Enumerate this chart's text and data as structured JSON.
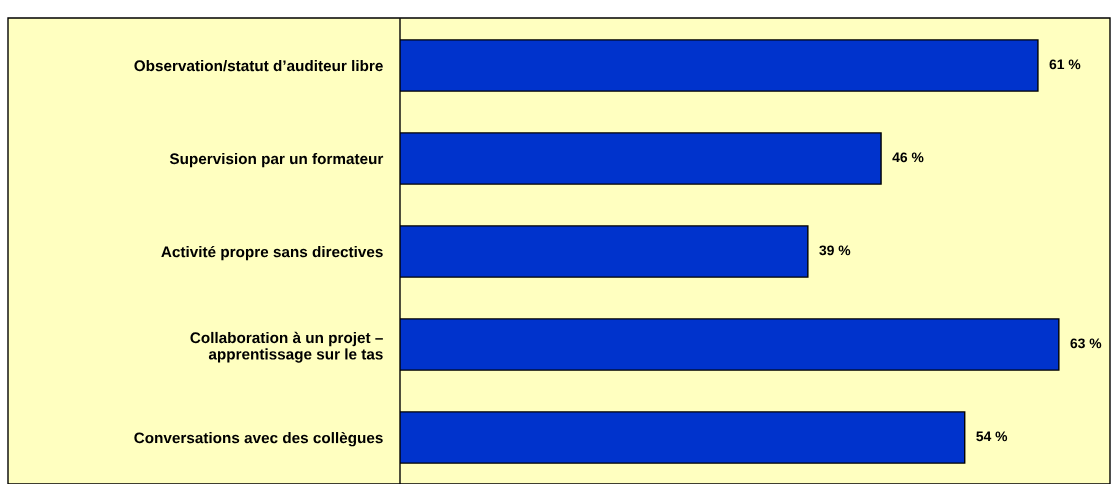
{
  "chart_data": {
    "type": "bar",
    "orientation": "horizontal",
    "categories": [
      "Observation/statut d’auditeur libre",
      "Supervision par un formateur",
      "Activité propre sans directives",
      "Collaboration à un projet –\napprentissage sur le tas",
      "Conversations avec des collègues"
    ],
    "values": [
      61,
      46,
      39,
      63,
      54
    ],
    "value_labels": [
      "61 %",
      "46 %",
      "39 %",
      "63 %",
      "54 %"
    ],
    "color": "#0033cc",
    "xlim": [
      0,
      67.7
    ],
    "tick_labels": "y"
  }
}
